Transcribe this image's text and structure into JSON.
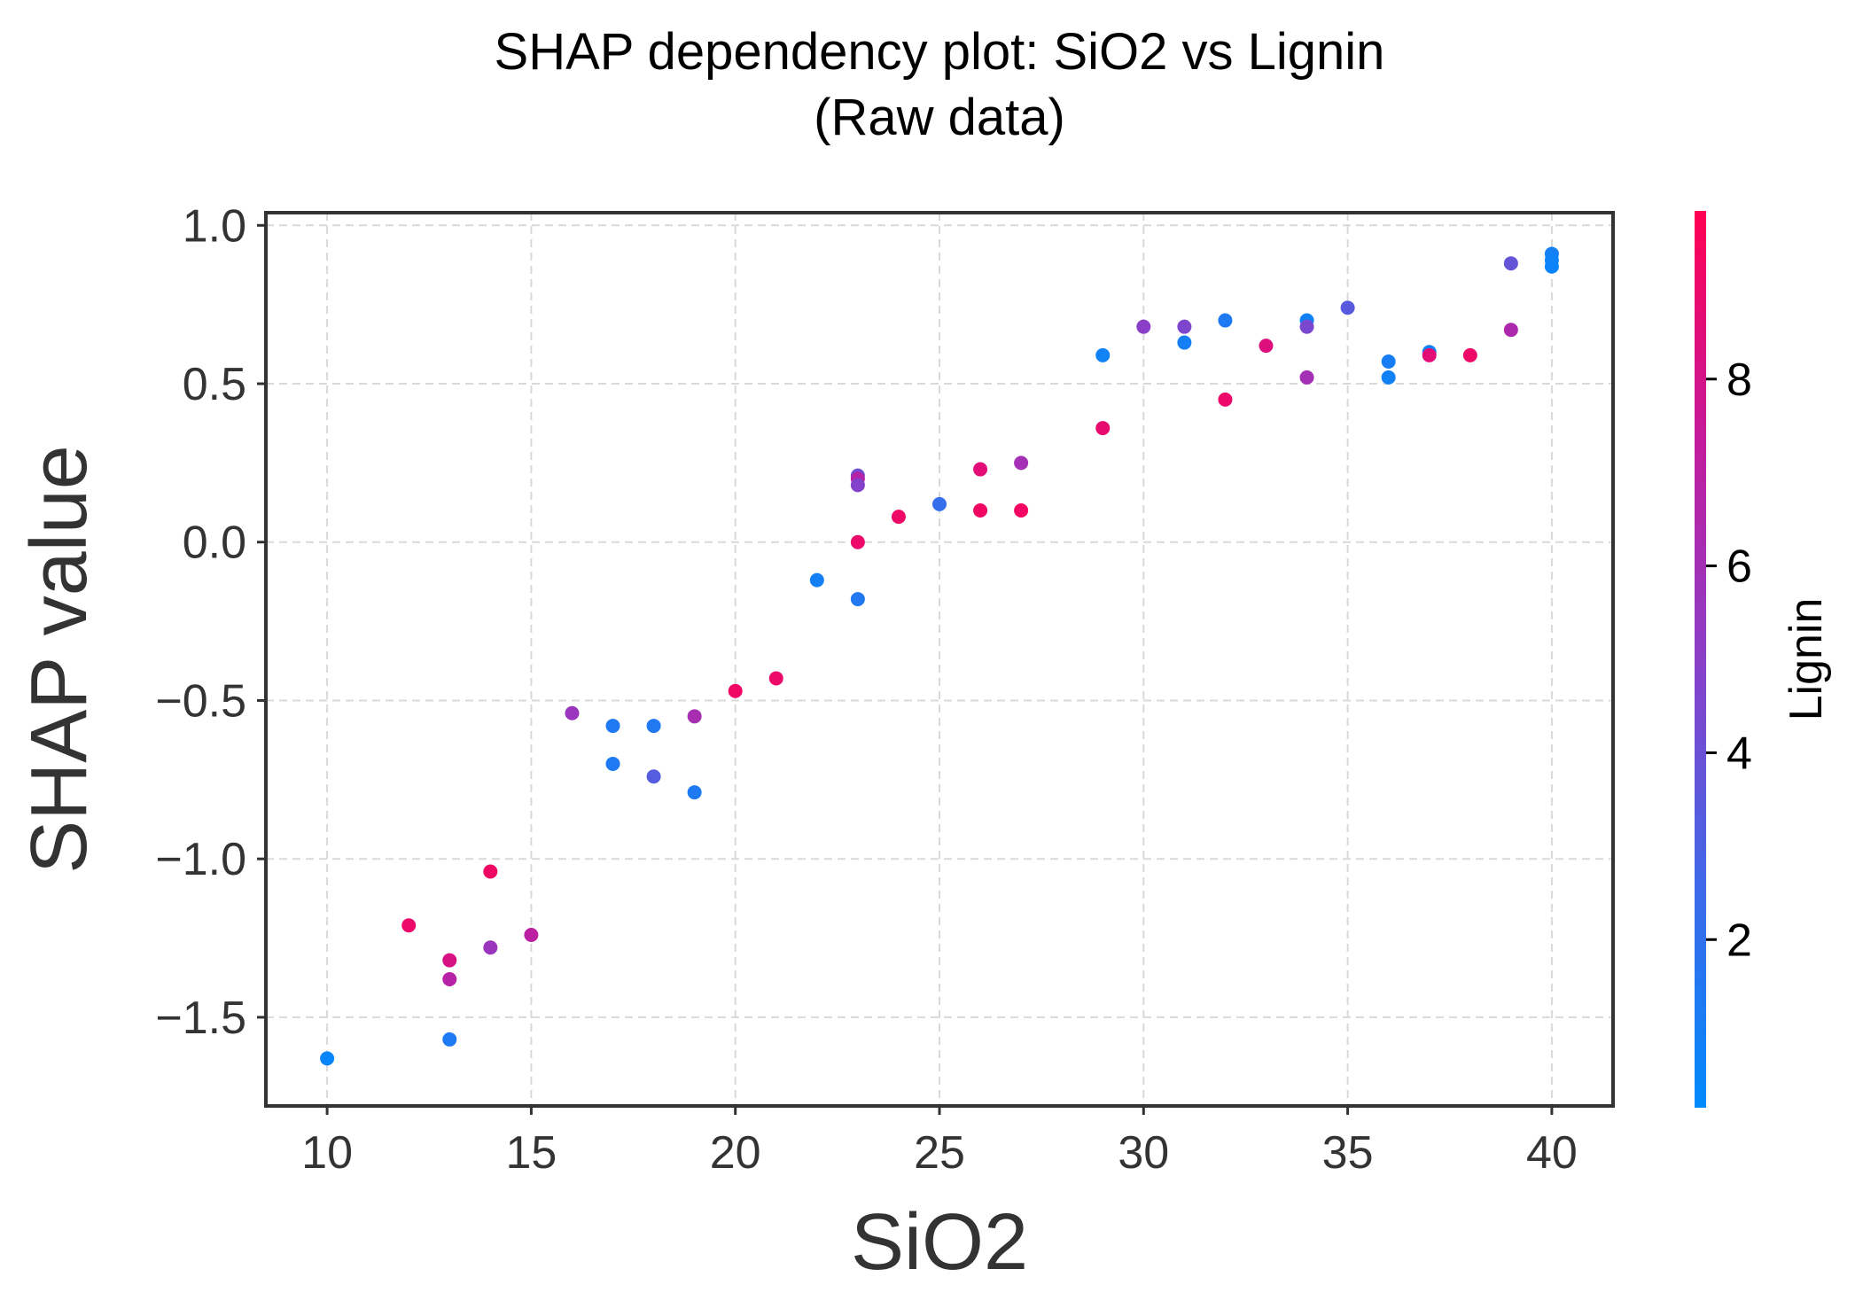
{
  "chart_data": {
    "type": "scatter",
    "title": "SHAP dependency plot: SiO2 vs Lignin",
    "subtitle": "(Raw data)",
    "xlabel": "SiO2",
    "ylabel": "SHAP value",
    "xlim": [
      8.5,
      41.5
    ],
    "ylim": [
      -1.78,
      1.04
    ],
    "x_ticks": [
      10,
      15,
      20,
      25,
      30,
      35,
      40
    ],
    "y_ticks": [
      1.0,
      0.5,
      0.0,
      -0.5,
      -1.0,
      -1.5
    ],
    "x_tick_labels": [
      "10",
      "15",
      "20",
      "25",
      "30",
      "35",
      "40"
    ],
    "y_tick_labels": [
      "1.0",
      "0.5",
      "0.0",
      "−0.5",
      "−1.0",
      "−1.5"
    ],
    "grid": true,
    "colorbar": {
      "label": "Lignin",
      "range": [
        0.2,
        9.8
      ],
      "ticks": [
        2,
        4,
        6,
        8
      ],
      "tick_labels": [
        "2",
        "4",
        "6",
        "8"
      ],
      "colors": [
        "#008afb",
        "#3f68e8",
        "#8a3fc8",
        "#c51a9a",
        "#ff0052"
      ]
    },
    "points": [
      {
        "x": 10,
        "y": -1.63,
        "c": 0.5
      },
      {
        "x": 12,
        "y": -1.21,
        "c": 9.0
      },
      {
        "x": 13,
        "y": -1.32,
        "c": 8.2
      },
      {
        "x": 13,
        "y": -1.38,
        "c": 6.8
      },
      {
        "x": 13,
        "y": -1.57,
        "c": 1.3
      },
      {
        "x": 14,
        "y": -1.04,
        "c": 9.2
      },
      {
        "x": 14,
        "y": -1.28,
        "c": 5.6
      },
      {
        "x": 15,
        "y": -1.24,
        "c": 7.0
      },
      {
        "x": 16,
        "y": -0.54,
        "c": 5.6
      },
      {
        "x": 17,
        "y": -0.58,
        "c": 1.4
      },
      {
        "x": 17,
        "y": -0.7,
        "c": 1.3
      },
      {
        "x": 18,
        "y": -0.58,
        "c": 1.5
      },
      {
        "x": 18,
        "y": -0.74,
        "c": 3.3
      },
      {
        "x": 19,
        "y": -0.55,
        "c": 6.2
      },
      {
        "x": 19,
        "y": -0.79,
        "c": 1.3
      },
      {
        "x": 20,
        "y": -0.47,
        "c": 9.2
      },
      {
        "x": 21,
        "y": -0.43,
        "c": 9.0
      },
      {
        "x": 22,
        "y": -0.12,
        "c": 1.0
      },
      {
        "x": 23,
        "y": 0.21,
        "c": 4.2
      },
      {
        "x": 23,
        "y": 0.2,
        "c": 6.8
      },
      {
        "x": 23,
        "y": 0.18,
        "c": 4.8
      },
      {
        "x": 23,
        "y": 0.0,
        "c": 9.0
      },
      {
        "x": 23,
        "y": -0.18,
        "c": 1.5
      },
      {
        "x": 24,
        "y": 0.08,
        "c": 9.1
      },
      {
        "x": 25,
        "y": 0.12,
        "c": 2.2
      },
      {
        "x": 26,
        "y": 0.23,
        "c": 8.6
      },
      {
        "x": 26,
        "y": 0.1,
        "c": 9.2
      },
      {
        "x": 27,
        "y": 0.25,
        "c": 6.0
      },
      {
        "x": 27,
        "y": 0.1,
        "c": 9.3
      },
      {
        "x": 29,
        "y": 0.59,
        "c": 0.8
      },
      {
        "x": 29,
        "y": 0.36,
        "c": 8.8
      },
      {
        "x": 30,
        "y": 0.68,
        "c": 5.0
      },
      {
        "x": 31,
        "y": 0.68,
        "c": 4.6
      },
      {
        "x": 31,
        "y": 0.63,
        "c": 1.0
      },
      {
        "x": 32,
        "y": 0.7,
        "c": 1.4
      },
      {
        "x": 32,
        "y": 0.45,
        "c": 9.0
      },
      {
        "x": 33,
        "y": 0.62,
        "c": 8.4
      },
      {
        "x": 34,
        "y": 0.7,
        "c": 0.9
      },
      {
        "x": 34,
        "y": 0.68,
        "c": 4.5
      },
      {
        "x": 34,
        "y": 0.52,
        "c": 6.0
      },
      {
        "x": 35,
        "y": 0.74,
        "c": 3.4
      },
      {
        "x": 36,
        "y": 0.57,
        "c": 1.1
      },
      {
        "x": 36,
        "y": 0.52,
        "c": 0.8
      },
      {
        "x": 37,
        "y": 0.6,
        "c": 0.8
      },
      {
        "x": 37,
        "y": 0.59,
        "c": 8.6
      },
      {
        "x": 38,
        "y": 0.59,
        "c": 9.1
      },
      {
        "x": 39,
        "y": 0.88,
        "c": 3.8
      },
      {
        "x": 39,
        "y": 0.67,
        "c": 6.4
      },
      {
        "x": 40,
        "y": 0.91,
        "c": 1.0
      },
      {
        "x": 40,
        "y": 0.89,
        "c": 0.7
      },
      {
        "x": 40,
        "y": 0.87,
        "c": 0.6
      }
    ]
  }
}
